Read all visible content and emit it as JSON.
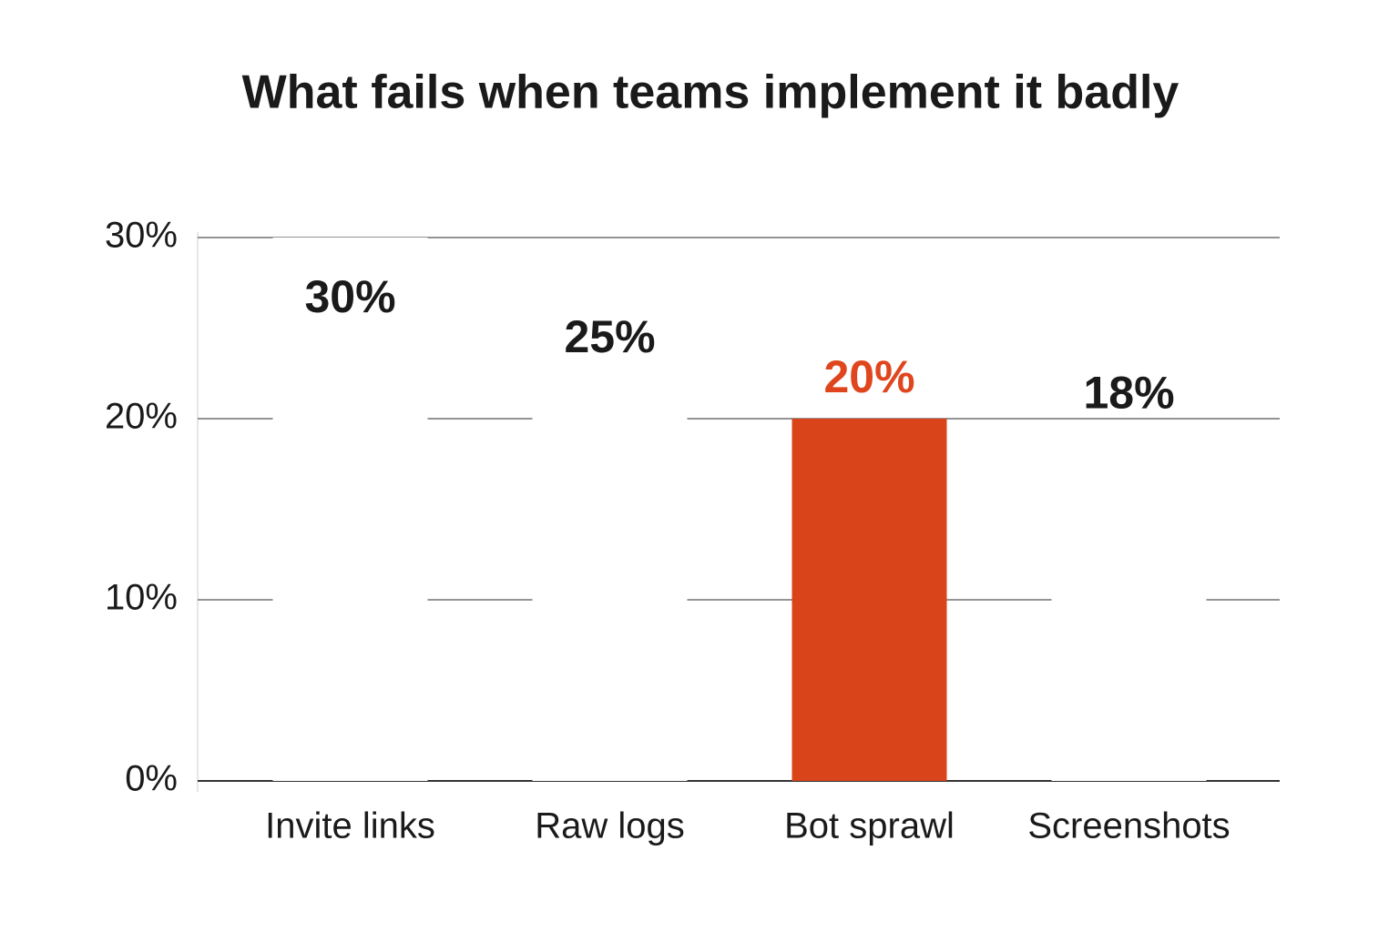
{
  "chart_data": {
    "type": "bar",
    "title": "What fails when teams implement it badly",
    "categories": [
      "Invite links",
      "Raw logs",
      "Bot sprawl",
      "Screenshots"
    ],
    "values": [
      30,
      25,
      20,
      18
    ],
    "value_labels": [
      "30%",
      "25%",
      "20%",
      "18%"
    ],
    "colors": [
      "#ffffff",
      "#ffffff",
      "#d9441a",
      "#ffffff"
    ],
    "value_label_colors": [
      "#1a1a1a",
      "#1a1a1a",
      "#e0461e",
      "#1a1a1a"
    ],
    "ylim": [
      0,
      30
    ],
    "yticks": [
      {
        "value": 0,
        "label": "0%"
      },
      {
        "value": 10,
        "label": "10%"
      },
      {
        "value": 20,
        "label": "20%"
      },
      {
        "value": 30,
        "label": "30%"
      }
    ],
    "grid": true
  }
}
